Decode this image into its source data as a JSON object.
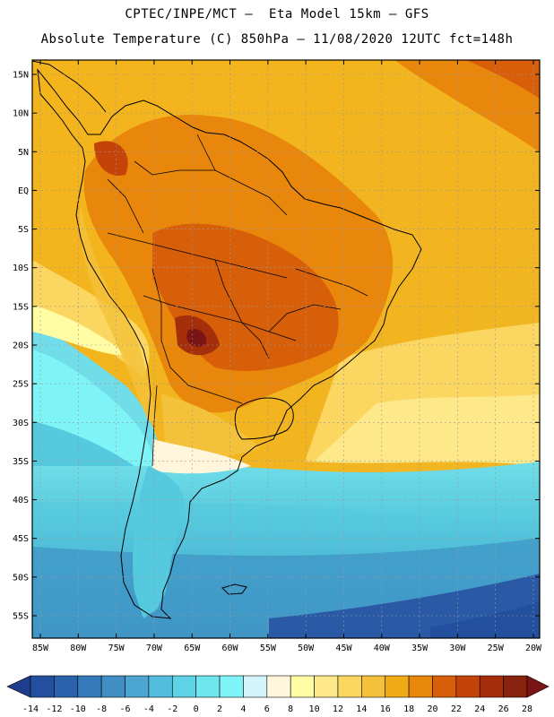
{
  "header": {
    "line1": "CPTEC/INPE/MCT –  Eta Model 15km – GFS",
    "line2": "Absolute Temperature (C) 850hPa – 11/08/2020 12UTC fct=148h"
  },
  "axes": {
    "lat_labels": [
      "15N",
      "10N",
      "5N",
      "EQ",
      "5S",
      "10S",
      "15S",
      "20S",
      "25S",
      "30S",
      "35S",
      "40S",
      "45S",
      "50S",
      "55S"
    ],
    "lon_labels": [
      "85W",
      "80W",
      "75W",
      "70W",
      "65W",
      "60W",
      "55W",
      "50W",
      "45W",
      "40W",
      "35W",
      "30W",
      "25W",
      "20W"
    ]
  },
  "colorbar": {
    "labels": [
      "-14",
      "-12",
      "-10",
      "-8",
      "-6",
      "-4",
      "-2",
      "0",
      "2",
      "4",
      "6",
      "8",
      "10",
      "12",
      "14",
      "16",
      "18",
      "20",
      "22",
      "24",
      "26",
      "28"
    ],
    "colors": [
      "#1f3d8c",
      "#23509e",
      "#2a63ac",
      "#3479b9",
      "#3f8fc4",
      "#4ca6d1",
      "#52bddd",
      "#5ed3e6",
      "#6fe5ee",
      "#7ff4f6",
      "#d3f4fb",
      "#fff6dc",
      "#fffca3",
      "#fde88a",
      "#fbd660",
      "#f4c23a",
      "#f0aa16",
      "#e8870b",
      "#d75f0a",
      "#c44308",
      "#a52f0a",
      "#8a2210",
      "#7b1414"
    ]
  }
}
